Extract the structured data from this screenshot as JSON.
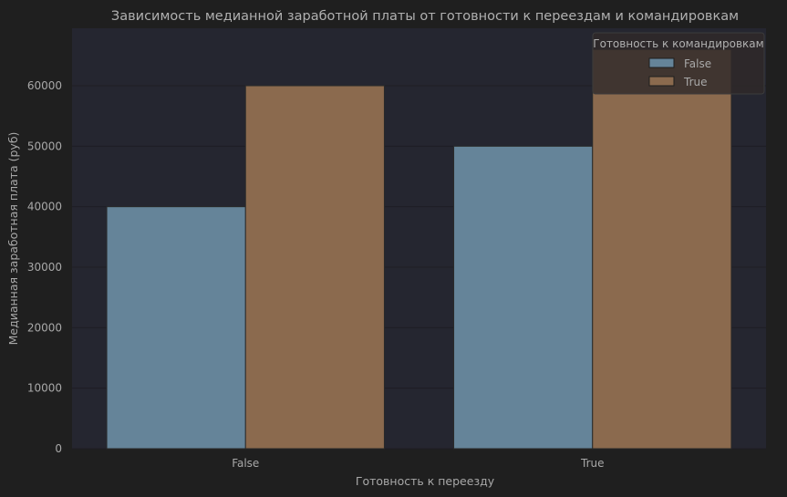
{
  "colors": {
    "figure_bg": "#1f1f1f",
    "plot_bg": "#252630",
    "grid": "#1e1e24",
    "text": "#a8a8a8",
    "bar_edge": "#2a2a2a"
  },
  "chart_data": {
    "type": "bar",
    "title": "Зависимость медианной заработной платы от готовности к переездам и командировкам",
    "xlabel": "Готовность к переезду",
    "ylabel": "Медианная заработная плата (руб)",
    "categories": [
      "False",
      "True"
    ],
    "series": [
      {
        "name": "False",
        "values": [
          40000,
          50000
        ],
        "color": "#658499"
      },
      {
        "name": "True",
        "values": [
          60000,
          66000
        ],
        "color": "#8b6a4e"
      }
    ],
    "ylim": [
      0,
      69500
    ],
    "yticks": [
      0,
      10000,
      20000,
      30000,
      40000,
      50000,
      60000
    ],
    "grid": true,
    "legend": {
      "title": "Готовность к командировкам",
      "placement": "top-right"
    }
  }
}
